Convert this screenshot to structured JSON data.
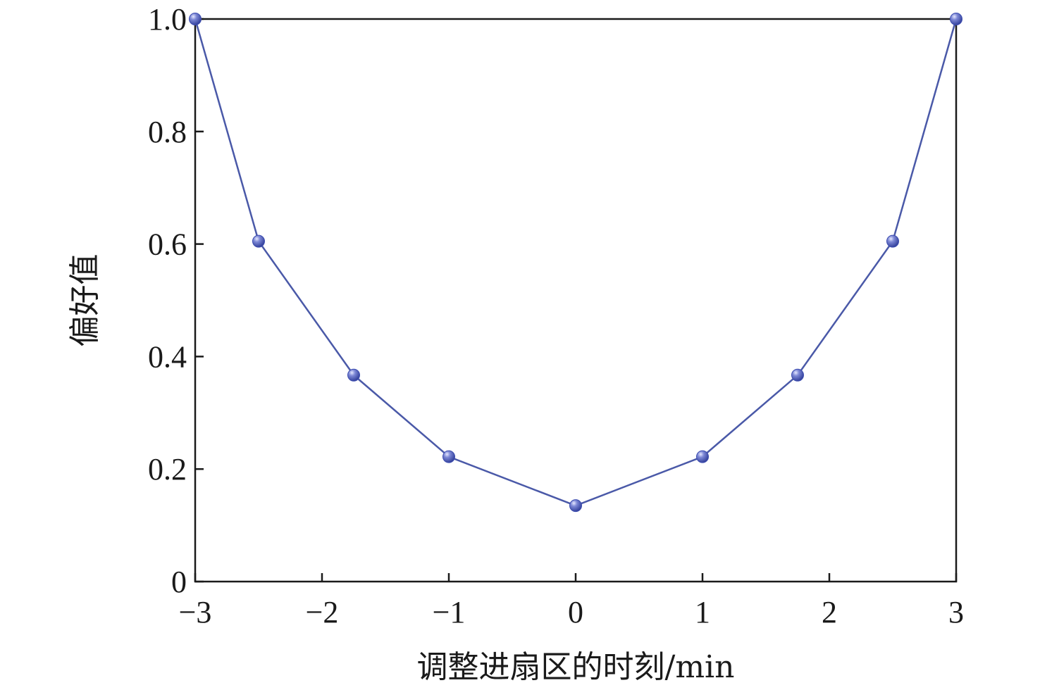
{
  "chart_data": {
    "type": "line",
    "title": "",
    "xlabel": "调整进扇区的时刻/min",
    "ylabel": "偏好值",
    "xlim": [
      -3,
      3
    ],
    "ylim": [
      0,
      1.0
    ],
    "x_ticks": [
      -3,
      -2,
      -1,
      0,
      1,
      2,
      3
    ],
    "x_tick_labels": [
      "−3",
      "−2",
      "−1",
      "0",
      "1",
      "2",
      "3"
    ],
    "y_ticks": [
      0,
      0.2,
      0.4,
      0.6,
      0.8,
      1.0
    ],
    "y_tick_labels": [
      "0",
      "0.2",
      "0.4",
      "0.6",
      "0.8",
      "1.0"
    ],
    "grid": false,
    "legend": "none",
    "series": [
      {
        "color": "#4a59a8",
        "marker_color": "#3d4db0",
        "points": [
          {
            "x": -3,
            "y": 1.0
          },
          {
            "x": -2.5,
            "y": 0.605
          },
          {
            "x": -1.75,
            "y": 0.367
          },
          {
            "x": -1,
            "y": 0.222
          },
          {
            "x": 0,
            "y": 0.135
          },
          {
            "x": 1,
            "y": 0.222
          },
          {
            "x": 1.75,
            "y": 0.367
          },
          {
            "x": 2.5,
            "y": 0.605
          },
          {
            "x": 3,
            "y": 1.0
          }
        ]
      }
    ]
  }
}
